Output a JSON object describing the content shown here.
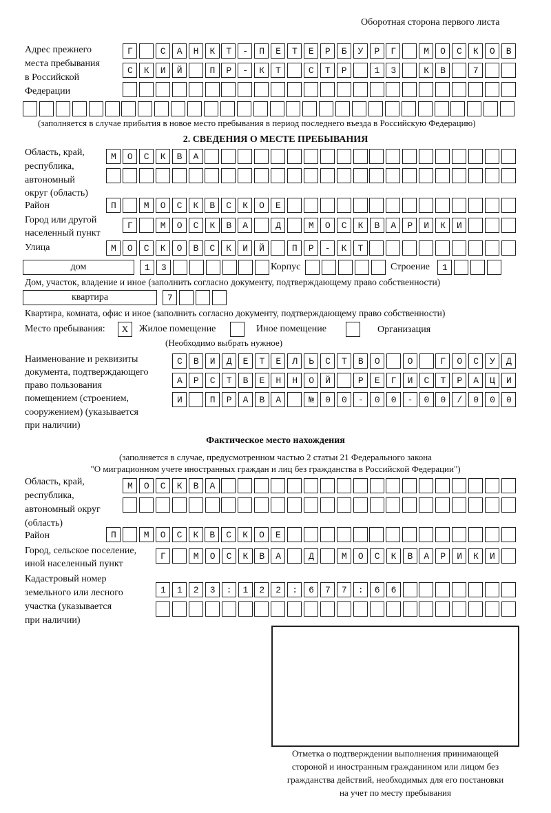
{
  "header": {
    "page_side": "Оборотная сторона первого листа"
  },
  "previous_address": {
    "label": [
      "Адрес прежнего",
      "места пребывания",
      "в Российской",
      "Федерации"
    ],
    "rows": [
      "Г САНКТ-ПЕТЕРБУРГ МОСКОВ",
      "СКИЙ ПР-КТ СТР 13 КВ 7  ",
      "                        ",
      "                              "
    ],
    "note": "(заполняется в случае прибытия в новое место пребывания в период последнего въезда в Российскую Федерацию)"
  },
  "section2": {
    "title": "2. СВЕДЕНИЯ О МЕСТЕ ПРЕБЫВАНИЯ",
    "region_label": [
      "Область, край,",
      "республика,",
      "автономный",
      "округ (область)"
    ],
    "region_rows": [
      "МОСКВА                   ",
      "                         "
    ],
    "district_label": "Район",
    "district_row": "П МОСКВСКОЕ              ",
    "city_label": [
      "Город или другой",
      "населенный пункт"
    ],
    "city_row": "Г МОСКВА Д МОСКВАРИКИ   ",
    "street_label": "Улица",
    "street_row": "МОСКОВСКИЙ ПР-КТ         ",
    "house_type": "дом",
    "house_row": "13      ",
    "korpus_label": "Корпус",
    "korpus_row": "     ",
    "building_label": "Строение",
    "building_row": "1   ",
    "house_note": "Дом, участок, владение и иное (заполнить согласно документу, подтверждающему право собственности)",
    "apt_type": "квартира",
    "apt_row": "7   ",
    "apt_note": "Квартира, комната, офис и иное (заполнить согласно документу, подтверждающему право собственности)",
    "stay_label": "Место пребывания:",
    "stay_options": [
      {
        "label": "Жилое помещение",
        "mark": "X"
      },
      {
        "label": "Иное помещение",
        "mark": ""
      },
      {
        "label": "Организация",
        "mark": ""
      }
    ],
    "stay_note": "(Необходимо выбрать нужное)",
    "doc_label": [
      "Наименование и реквизиты",
      "документа, подтверждающего",
      "право пользования",
      "помещением (строением,",
      "сооружением) (указывается",
      "при наличии)"
    ],
    "doc_rows": [
      "СВИДЕТЕЛЬСТВО О ГОСУД",
      "АРСТВЕННОЙ РЕГИСТРАЦИ",
      "И ПРАВА №00-00-00/000"
    ]
  },
  "actual": {
    "title": "Фактическое место нахождения",
    "note": [
      "(заполняется в случае, предусмотренном частью 2 статьи 21 Федерального закона",
      "\"О миграционном учете иностранных граждан и лиц без гражданства в Российской Федерации\")"
    ],
    "region_label": [
      "Область, край,",
      "республика,",
      "автономный округ",
      "(область)"
    ],
    "region_rows": [
      "МОСКВА                  ",
      "                        "
    ],
    "district_label": "Район",
    "district_row": "П МОСКВСКОЕ              ",
    "city_label": [
      "Город, сельское поселение,",
      "иной населенный пункт"
    ],
    "city_row": "Г МОСКВА Д МОСКВАРИКИ ",
    "cadastre_label": [
      "Кадастровый номер",
      "земельного или лесного",
      "участка (указывается",
      "при наличии)"
    ],
    "cadastre_rows": [
      "1123:122:677:66       ",
      "                      "
    ]
  },
  "stamp": {
    "caption": [
      "Отметка о подтверждении выполнения принимающей",
      "стороной и иностранным гражданином или лицом без",
      "гражданства действий, необходимых для его постановки",
      "на учет по месту пребывания"
    ]
  }
}
